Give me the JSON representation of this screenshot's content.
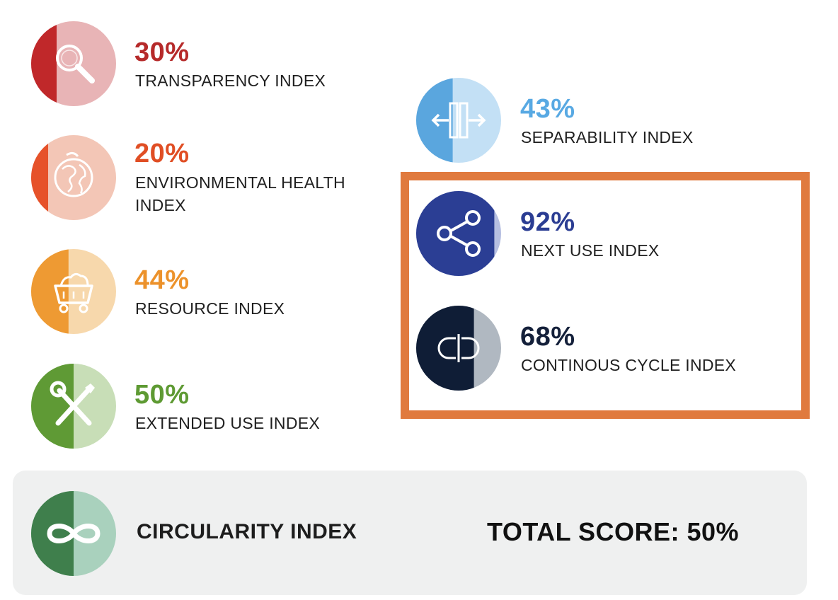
{
  "chart_data": {
    "type": "table",
    "metrics": [
      {
        "id": "transparency",
        "value_text": "30%",
        "value": 30,
        "label": "TRANSPARENCY INDEX",
        "color_dark": "#c0282a",
        "color_light": "#e8b4b6",
        "text_color": "#b62a2a",
        "icon": "magnifier-icon"
      },
      {
        "id": "environmental",
        "value_text": "20%",
        "value": 20,
        "label_lines": [
          "ENVIRONMENTAL HEALTH",
          "INDEX"
        ],
        "color_dark": "#e6522a",
        "color_light": "#f3c6b6",
        "text_color": "#e04e24",
        "icon": "globe-icon"
      },
      {
        "id": "resource",
        "value_text": "44%",
        "value": 44,
        "label": "RESOURCE INDEX",
        "color_dark": "#ee9a33",
        "color_light": "#f7d8ac",
        "text_color": "#ec922b",
        "icon": "mine-cart-icon"
      },
      {
        "id": "extended",
        "value_text": "50%",
        "value": 50,
        "label": "EXTENDED USE INDEX",
        "color_dark": "#5f9a35",
        "color_light": "#c8deb7",
        "text_color": "#5e9a33",
        "icon": "tools-icon"
      },
      {
        "id": "separability",
        "value_text": "43%",
        "value": 43,
        "label": "SEPARABILITY INDEX",
        "color_dark": "#5aa6de",
        "color_light": "#c3e0f5",
        "text_color": "#58a9e3",
        "icon": "separate-arrows-icon"
      },
      {
        "id": "nextuse",
        "value_text": "92%",
        "value": 92,
        "label": "NEXT USE INDEX",
        "color_dark": "#2b3e94",
        "color_light": "#b6bfe1",
        "text_color": "#2b3d93",
        "icon": "share-icon"
      },
      {
        "id": "continuous",
        "value_text": "68%",
        "value": 68,
        "label": "CONTINOUS CYCLE INDEX",
        "color_dark": "#0f1d36",
        "color_light": "#b0b8c1",
        "text_color": "#14203a",
        "icon": "cycle-icon"
      }
    ],
    "highlighted": [
      "nextuse",
      "continuous"
    ],
    "highlight_color": "#e07a3e",
    "total": {
      "label": "CIRCULARITY INDEX",
      "score_text": "TOTAL SCORE: 50%",
      "value": 50,
      "color_dark": "#3f7f4c",
      "color_light": "#a9d1bd",
      "icon": "infinity-icon"
    }
  }
}
